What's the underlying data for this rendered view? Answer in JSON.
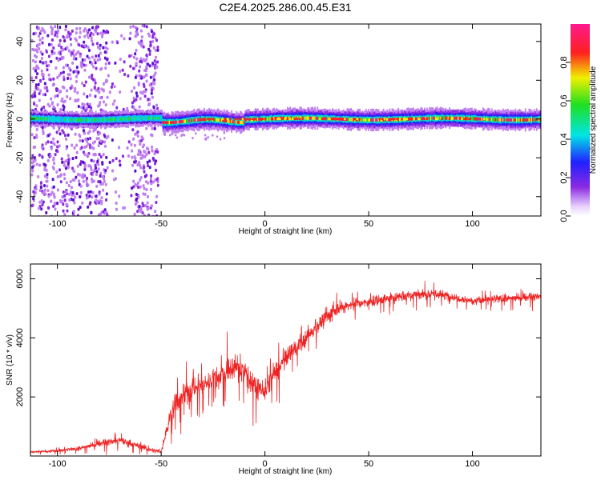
{
  "title": "C2E4.2025.286.00.45.E31",
  "chart_data": [
    {
      "type": "heatmap",
      "name": "spectrogram",
      "xlabel": "Height of straight line (km)",
      "ylabel": "Frequency (Hz)",
      "xlim": [
        -113,
        133
      ],
      "ylim": [
        -50,
        49
      ],
      "xticks": [
        -100,
        -50,
        0,
        50,
        100
      ],
      "xtick_labels": [
        "-100",
        "-50",
        "0",
        "50",
        "100"
      ],
      "yticks": [
        -40,
        -20,
        0,
        20,
        40
      ],
      "ytick_labels": [
        "-40",
        "-20",
        "0",
        "20",
        "40"
      ],
      "colorbar": {
        "label": "Normalized spectral amplitude",
        "range": [
          0,
          1
        ],
        "ticks": [
          0.0,
          0.2,
          0.4,
          0.6,
          0.8
        ],
        "tick_labels": [
          "0.0",
          "0.2",
          "0.4",
          "0.6",
          "0.8"
        ],
        "colormap": "rainbow (white-violet-blue-cyan-green-yellow-red-magenta)"
      },
      "description_points": {
        "band_center_hz": 0,
        "noisy_region_km": [
          -113,
          -52
        ],
        "strong_band_km": [
          -50,
          133
        ]
      }
    },
    {
      "type": "line",
      "name": "snr",
      "xlabel": "Height of straight line (km)",
      "ylabel": "SNR (10 * v/v)",
      "xlim": [
        -113,
        133
      ],
      "ylim": [
        0,
        6500
      ],
      "xticks": [
        -100,
        -50,
        0,
        50,
        100
      ],
      "xtick_labels": [
        "-100",
        "-50",
        "0",
        "50",
        "100"
      ],
      "yticks": [
        2000,
        4000,
        6000
      ],
      "ytick_labels": [
        "2000",
        "4000",
        "6000"
      ],
      "color": "#ee2222",
      "series": [
        {
          "name": "SNR",
          "x": [
            -113,
            -100,
            -90,
            -80,
            -70,
            -60,
            -55,
            -50,
            -45,
            -40,
            -35,
            -30,
            -25,
            -20,
            -15,
            -10,
            -5,
            0,
            5,
            10,
            15,
            20,
            25,
            30,
            35,
            40,
            50,
            60,
            70,
            80,
            90,
            100,
            110,
            120,
            133
          ],
          "y": [
            150,
            170,
            250,
            420,
            520,
            330,
            200,
            150,
            1500,
            2000,
            2300,
            2400,
            2600,
            2800,
            3000,
            2900,
            2400,
            2200,
            2800,
            3300,
            3700,
            4000,
            4400,
            4700,
            5000,
            5100,
            5200,
            5350,
            5450,
            5500,
            5400,
            5250,
            5300,
            5350,
            5400
          ],
          "noise": [
            80,
            90,
            100,
            200,
            250,
            200,
            150,
            100,
            700,
            800,
            800,
            700,
            700,
            800,
            900,
            800,
            800,
            700,
            700,
            600,
            600,
            500,
            450,
            500,
            400,
            350,
            320,
            350,
            350,
            350,
            300,
            250,
            250,
            250,
            250
          ]
        }
      ]
    }
  ]
}
